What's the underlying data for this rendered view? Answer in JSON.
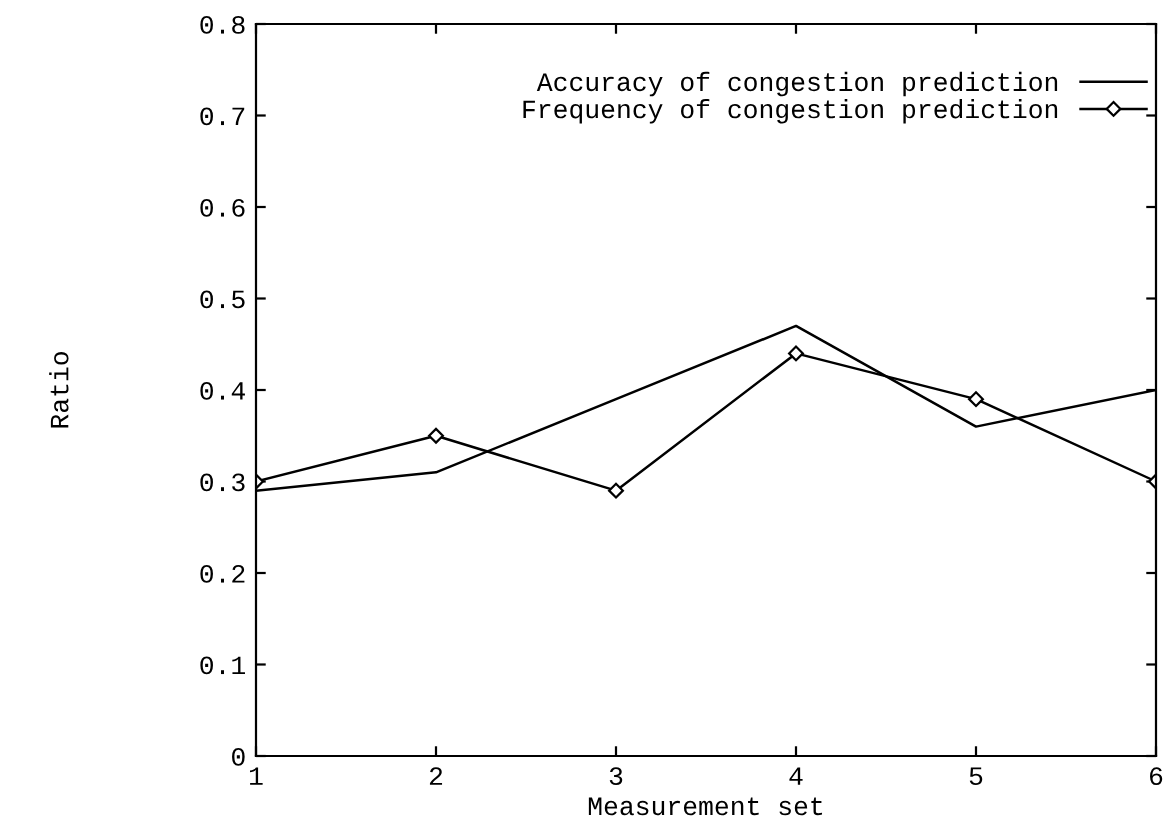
{
  "chart_data": {
    "type": "line",
    "xlabel": "Measurement set",
    "ylabel": "Ratio",
    "x": [
      1,
      2,
      3,
      4,
      5,
      6
    ],
    "xlim": [
      1,
      6
    ],
    "xticks": [
      1,
      2,
      3,
      4,
      5,
      6
    ],
    "ylim": [
      0,
      0.8
    ],
    "yticks": [
      0,
      0.1,
      0.2,
      0.3,
      0.4,
      0.5,
      0.6,
      0.7,
      0.8
    ],
    "grid": false,
    "legend": "top right",
    "series": [
      {
        "name": "Accuracy of congestion prediction",
        "color": "#000000",
        "marker": "none",
        "values": [
          0.29,
          0.31,
          0.39,
          0.47,
          0.36,
          0.4
        ]
      },
      {
        "name": "Frequency of congestion prediction",
        "color": "#000000",
        "marker": "diamond",
        "values": [
          0.3,
          0.35,
          0.29,
          0.44,
          0.39,
          0.3
        ]
      }
    ]
  }
}
